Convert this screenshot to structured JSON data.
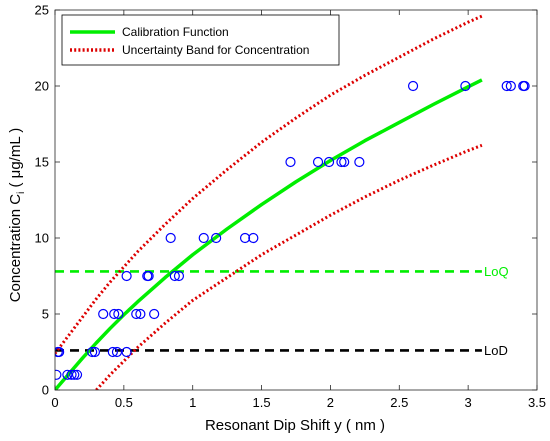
{
  "chart_data": {
    "type": "scatter",
    "xlabel": "Resonant Dip Shift y ( nm )",
    "ylabel_main": "Concentration C",
    "ylabel_sub": "i",
    "ylabel_tail": " ( μg/mL )",
    "xlim": [
      0,
      3.5
    ],
    "ylim": [
      0,
      25
    ],
    "xticks": [
      "0",
      "0.5",
      "1",
      "1.5",
      "2",
      "2.5",
      "3",
      "3.5"
    ],
    "yticks": [
      "0",
      "5",
      "10",
      "15",
      "20",
      "25"
    ],
    "grid": false,
    "legend_position": "top-left",
    "colors": {
      "calibration": "#00ee00",
      "uncertainty": "#dd0000",
      "points": "#0000ff",
      "loq": "#00ee00",
      "lod": "#000000"
    },
    "series": [
      {
        "name": "Calibration Function",
        "kind": "line",
        "x": [
          0.0,
          0.1,
          0.2,
          0.3,
          0.4,
          0.5,
          0.6,
          0.8,
          1.0,
          1.25,
          1.5,
          1.75,
          2.0,
          2.25,
          2.5,
          2.75,
          3.0,
          3.1
        ],
        "y": [
          0.0,
          1.05,
          2.1,
          3.1,
          4.05,
          4.95,
          5.8,
          7.4,
          8.9,
          10.6,
          12.2,
          13.7,
          15.1,
          16.4,
          17.6,
          18.8,
          19.95,
          20.4
        ]
      },
      {
        "name": "Uncertainty Band for Concentration",
        "kind": "line",
        "x": [
          0.0,
          0.1,
          0.2,
          0.3,
          0.4,
          0.5,
          0.6,
          0.8,
          1.0,
          1.25,
          1.5,
          1.75,
          2.0,
          2.25,
          2.5,
          2.75,
          3.0,
          3.1
        ],
        "y": [
          2.4,
          3.6,
          4.8,
          6.0,
          7.1,
          8.1,
          9.1,
          10.9,
          12.6,
          14.5,
          16.3,
          17.9,
          19.4,
          20.7,
          21.9,
          23.1,
          24.2,
          24.6
        ]
      },
      {
        "kind": "line",
        "x": [
          0.3,
          0.4,
          0.5,
          0.6,
          0.8,
          1.0,
          1.25,
          1.5,
          1.75,
          2.0,
          2.25,
          2.5,
          2.75,
          3.0,
          3.1
        ],
        "y": [
          0.0,
          1.0,
          1.9,
          2.8,
          4.4,
          5.9,
          7.4,
          8.9,
          10.2,
          11.5,
          12.7,
          13.8,
          14.8,
          15.75,
          16.1
        ]
      },
      {
        "kind": "scatter",
        "x": [
          0.01,
          0.03,
          0.09,
          0.12,
          0.14,
          0.16,
          0.02,
          0.27,
          0.29,
          0.42,
          0.45,
          0.52,
          0.35,
          0.43,
          0.46,
          0.59,
          0.62,
          0.52,
          0.67,
          0.68,
          0.72,
          0.87,
          0.9,
          0.84,
          1.08,
          1.17,
          1.38,
          1.44,
          1.71,
          1.91,
          1.99,
          2.08,
          2.1,
          2.21,
          2.6,
          2.98,
          3.28,
          3.31,
          3.4,
          3.41
        ],
        "y": [
          1,
          2.5,
          1,
          1,
          1,
          1,
          2.5,
          2.5,
          2.5,
          2.5,
          2.5,
          2.5,
          5,
          5,
          5,
          5,
          5,
          7.5,
          7.5,
          7.5,
          5,
          7.5,
          7.5,
          10,
          10,
          10,
          10,
          10,
          15,
          15,
          15,
          15,
          15,
          15,
          20,
          20,
          20,
          20,
          20,
          20
        ]
      }
    ],
    "reference_lines": [
      {
        "label": "LoQ",
        "y": 7.8,
        "color": "#00ee00"
      },
      {
        "label": "LoD",
        "y": 2.6,
        "color": "#000000"
      }
    ]
  }
}
